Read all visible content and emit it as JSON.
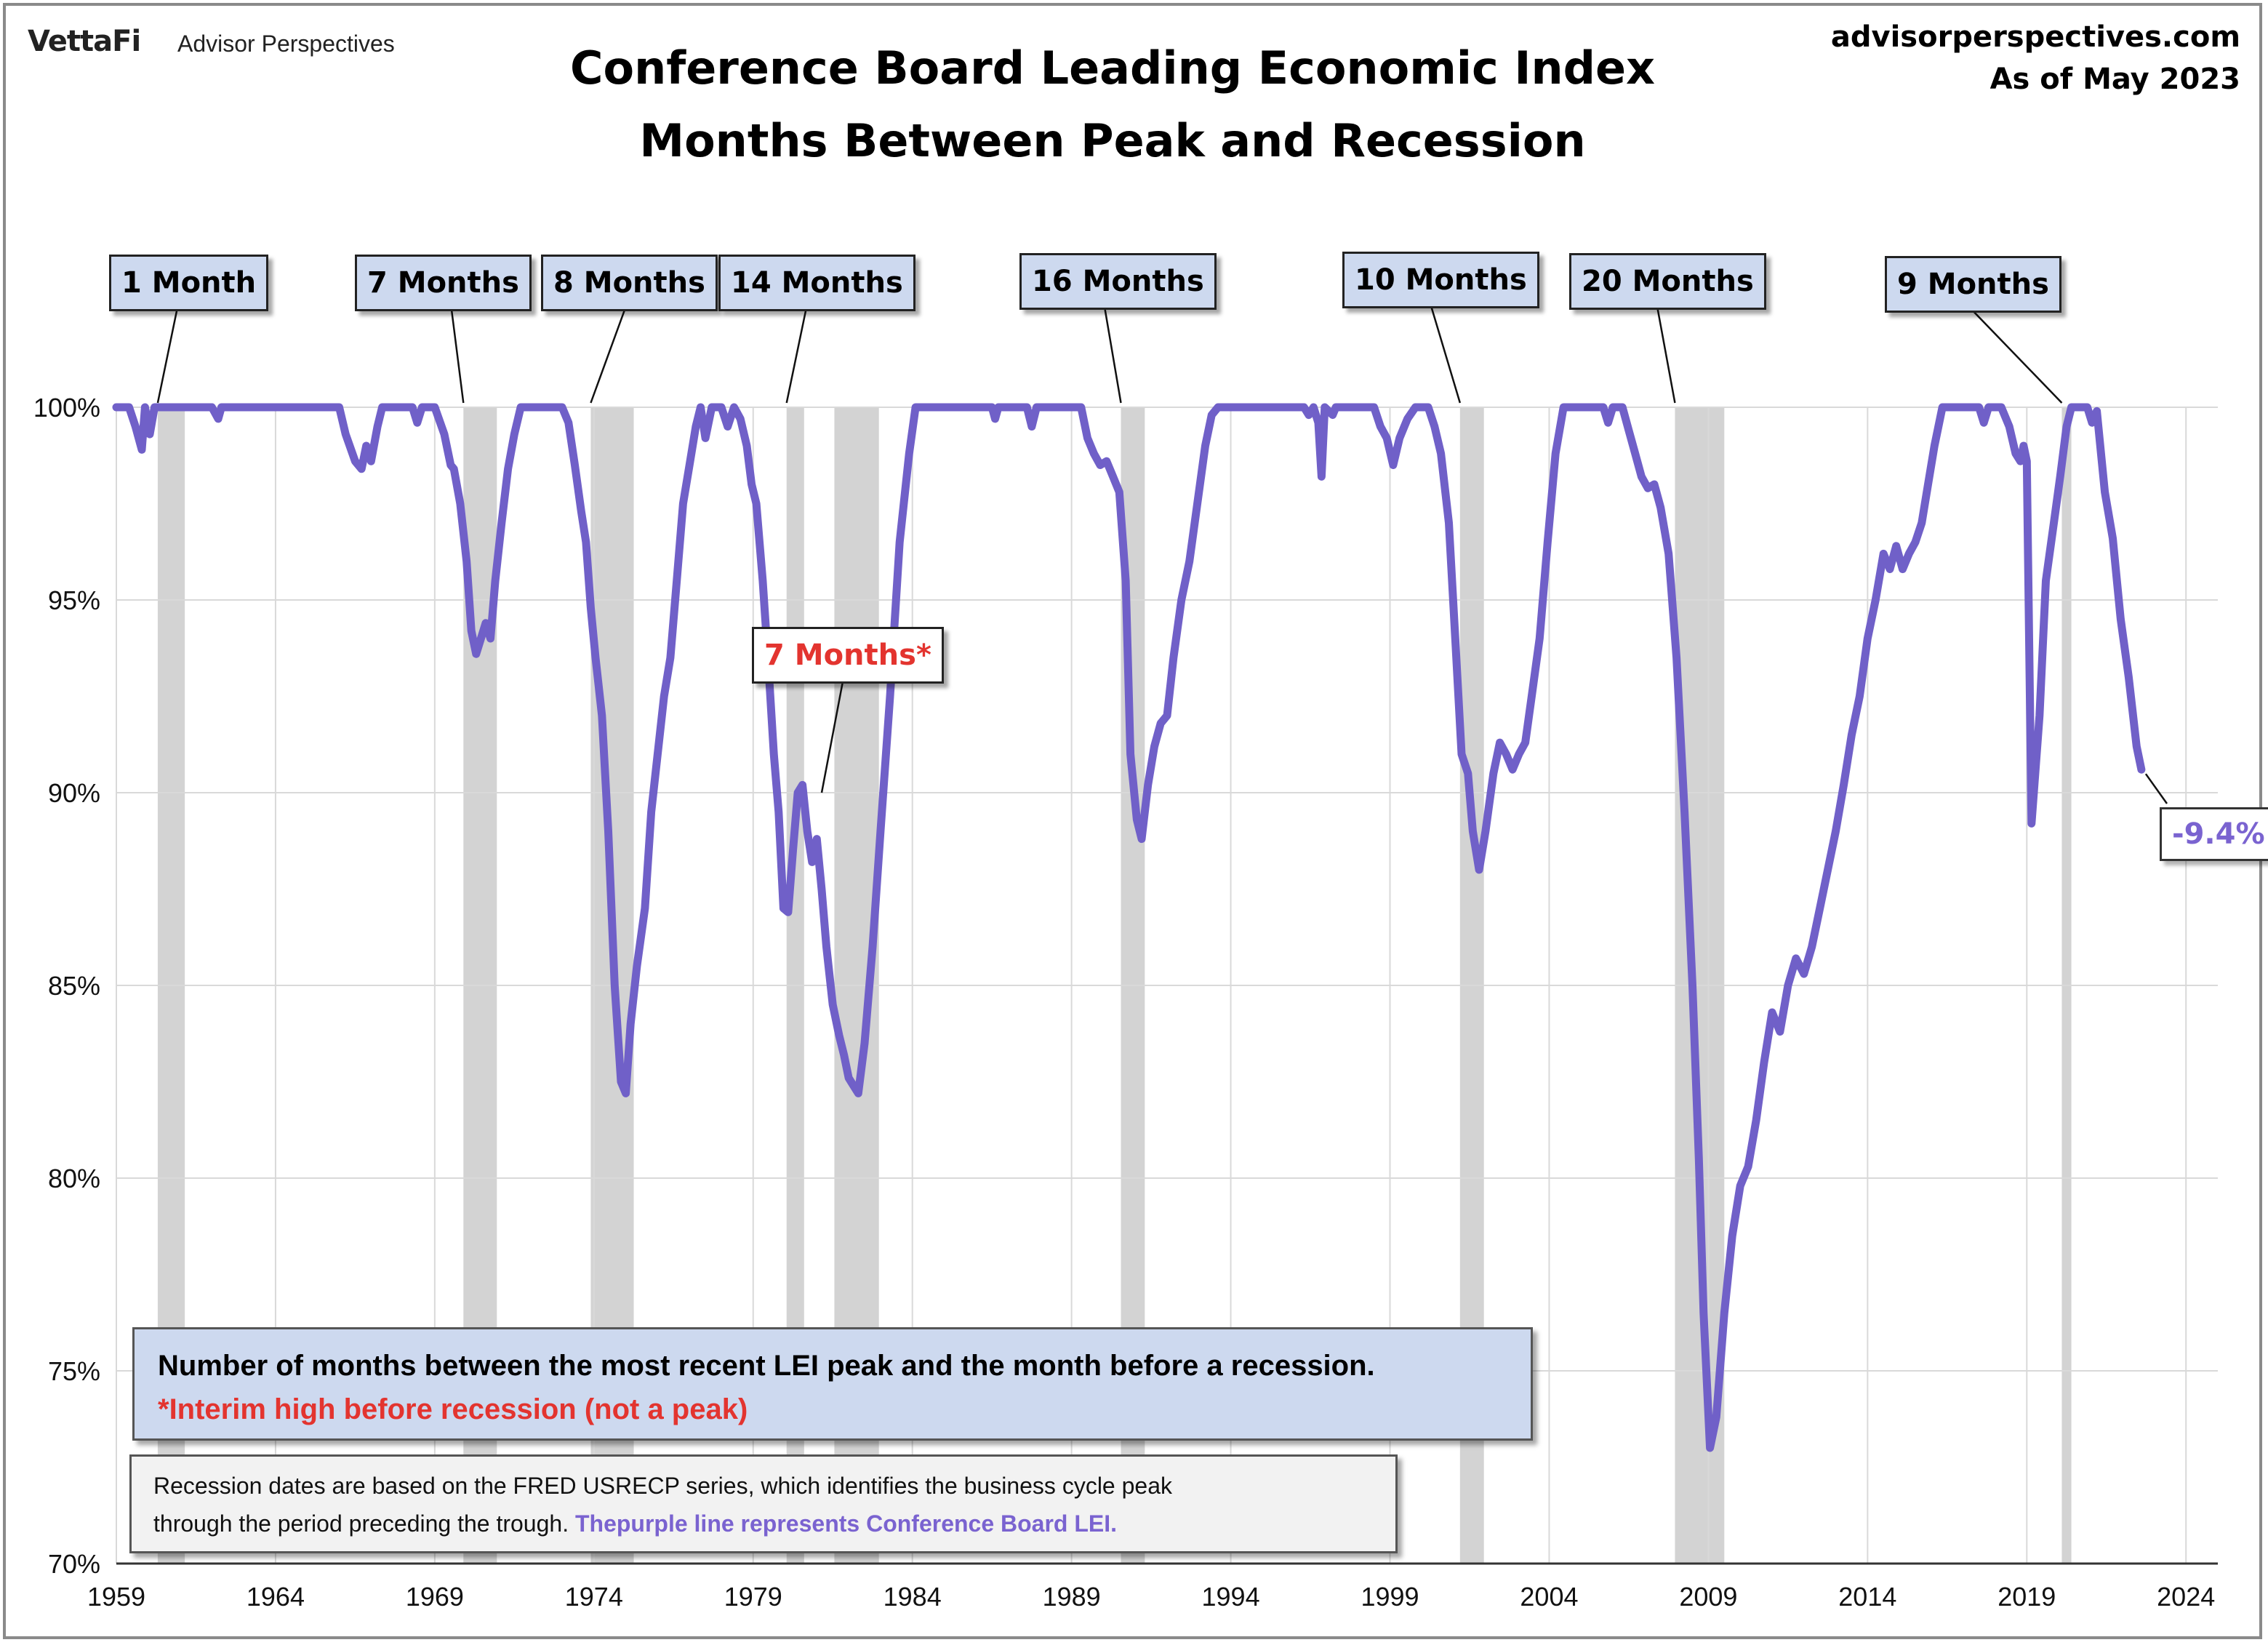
{
  "header": {
    "logo": "VettaFi",
    "logo_sub": "Advisor Perspectives",
    "site": "advisorperspectives.com",
    "as_of": "As of May 2023",
    "title_line1": "Conference Board Leading Economic Index",
    "title_line2": "Months Between Peak and Recession"
  },
  "colors": {
    "line": "#7060c8",
    "recession": "#d3d3d3",
    "callout_bg": "#cdd9ef",
    "red": "#e3342f",
    "grid": "#d9d9d9"
  },
  "callouts": [
    {
      "id": "c1",
      "text": "1 Month"
    },
    {
      "id": "c7",
      "text": "7 Months"
    },
    {
      "id": "c8",
      "text": "8 Months"
    },
    {
      "id": "c14",
      "text": "14 Months"
    },
    {
      "id": "c16",
      "text": "16 Months"
    },
    {
      "id": "c10",
      "text": "10 Months"
    },
    {
      "id": "c20",
      "text": "20 Months"
    },
    {
      "id": "c9",
      "text": "9 Months"
    }
  ],
  "interim_callout": {
    "number": "7",
    "text": " Months*"
  },
  "latest_label": "-9.4%",
  "note": {
    "line1": "Number of months between the most recent LEI peak and the month before a recession.",
    "line2": "*Interim high before recession (not a peak)"
  },
  "source": {
    "line1": "Recession dates are based on the FRED USRECP series, which identifies the business cycle peak",
    "line2a": "through the period preceding the trough.",
    "line2b": " Thepurple line represents Conference Board LEI."
  },
  "chart_data": {
    "type": "line",
    "title": "Conference Board Leading Economic Index Months Between Peak and Recession",
    "xlabel": "",
    "ylabel": "",
    "xlim": [
      1959,
      2025
    ],
    "ylim": [
      70,
      100
    ],
    "grid": true,
    "yticks": [
      70,
      75,
      80,
      85,
      90,
      95,
      100
    ],
    "ytick_labels": [
      "70%",
      "75%",
      "80%",
      "85%",
      "90%",
      "95%",
      "100%"
    ],
    "xticks": [
      1959,
      1964,
      1969,
      1974,
      1979,
      1984,
      1989,
      1994,
      1999,
      2004,
      2009,
      2014,
      2019,
      2024
    ],
    "xtick_labels": [
      "1959",
      "1964",
      "1969",
      "1974",
      "1979",
      "1984",
      "1989",
      "1994",
      "1999",
      "2004",
      "2009",
      "2014",
      "2019",
      "2024"
    ],
    "recessions": [
      [
        1960.3,
        1961.15
      ],
      [
        1969.9,
        1970.95
      ],
      [
        1973.9,
        1975.25
      ],
      [
        1980.05,
        1980.6
      ],
      [
        1981.55,
        1982.95
      ],
      [
        1990.55,
        1991.3
      ],
      [
        2001.2,
        2001.95
      ],
      [
        2007.95,
        2009.5
      ],
      [
        2020.1,
        2020.4
      ]
    ],
    "series": [
      {
        "values": [
          [
            1959.0,
            100
          ],
          [
            1959.4,
            100
          ],
          [
            1959.6,
            99.5
          ],
          [
            1959.8,
            98.9
          ],
          [
            1959.9,
            100
          ],
          [
            1960.05,
            99.3
          ],
          [
            1960.2,
            100
          ],
          [
            1960.5,
            100
          ],
          [
            1962.0,
            100
          ],
          [
            1962.2,
            99.7
          ],
          [
            1962.3,
            100
          ],
          [
            1966.0,
            100
          ],
          [
            1966.2,
            99.3
          ],
          [
            1966.5,
            98.6
          ],
          [
            1966.7,
            98.4
          ],
          [
            1966.85,
            99.0
          ],
          [
            1967.0,
            98.6
          ],
          [
            1967.2,
            99.5
          ],
          [
            1967.35,
            100
          ],
          [
            1968.3,
            100
          ],
          [
            1968.45,
            99.6
          ],
          [
            1968.6,
            100
          ],
          [
            1969.0,
            100
          ],
          [
            1969.3,
            99.3
          ],
          [
            1969.5,
            98.5
          ],
          [
            1969.6,
            98.4
          ],
          [
            1969.8,
            97.5
          ],
          [
            1970.0,
            96.0
          ],
          [
            1970.15,
            94.2
          ],
          [
            1970.3,
            93.6
          ],
          [
            1970.45,
            94.0
          ],
          [
            1970.6,
            94.4
          ],
          [
            1970.75,
            94.0
          ],
          [
            1970.9,
            95.5
          ],
          [
            1971.1,
            97.0
          ],
          [
            1971.3,
            98.4
          ],
          [
            1971.5,
            99.3
          ],
          [
            1971.7,
            100
          ],
          [
            1973.0,
            100
          ],
          [
            1973.2,
            99.6
          ],
          [
            1973.4,
            98.5
          ],
          [
            1973.6,
            97.3
          ],
          [
            1973.75,
            96.5
          ],
          [
            1973.9,
            94.8
          ],
          [
            1974.05,
            93.5
          ],
          [
            1974.25,
            92.0
          ],
          [
            1974.45,
            89.0
          ],
          [
            1974.65,
            85.0
          ],
          [
            1974.85,
            82.5
          ],
          [
            1975.0,
            82.2
          ],
          [
            1975.15,
            84.0
          ],
          [
            1975.35,
            85.5
          ],
          [
            1975.6,
            87.0
          ],
          [
            1975.8,
            89.5
          ],
          [
            1976.0,
            91.0
          ],
          [
            1976.2,
            92.5
          ],
          [
            1976.4,
            93.5
          ],
          [
            1976.6,
            95.5
          ],
          [
            1976.8,
            97.5
          ],
          [
            1977.0,
            98.5
          ],
          [
            1977.2,
            99.5
          ],
          [
            1977.35,
            100
          ],
          [
            1977.5,
            99.2
          ],
          [
            1977.7,
            100
          ],
          [
            1978.0,
            100
          ],
          [
            1978.2,
            99.5
          ],
          [
            1978.4,
            100
          ],
          [
            1978.6,
            99.7
          ],
          [
            1978.8,
            99.0
          ],
          [
            1978.95,
            98.0
          ],
          [
            1979.1,
            97.5
          ],
          [
            1979.3,
            95.5
          ],
          [
            1979.5,
            93.0
          ],
          [
            1979.65,
            91.0
          ],
          [
            1979.8,
            89.5
          ],
          [
            1979.95,
            87.0
          ],
          [
            1980.1,
            86.9
          ],
          [
            1980.25,
            88.5
          ],
          [
            1980.4,
            90.0
          ],
          [
            1980.55,
            90.2
          ],
          [
            1980.7,
            89.0
          ],
          [
            1980.85,
            88.2
          ],
          [
            1981.0,
            88.8
          ],
          [
            1981.15,
            87.5
          ],
          [
            1981.3,
            86.0
          ],
          [
            1981.5,
            84.5
          ],
          [
            1981.7,
            83.7
          ],
          [
            1981.85,
            83.2
          ],
          [
            1982.0,
            82.6
          ],
          [
            1982.15,
            82.4
          ],
          [
            1982.3,
            82.2
          ],
          [
            1982.5,
            83.5
          ],
          [
            1982.75,
            86.0
          ],
          [
            1983.0,
            89.0
          ],
          [
            1983.3,
            92.5
          ],
          [
            1983.6,
            96.5
          ],
          [
            1983.9,
            98.8
          ],
          [
            1984.1,
            100
          ],
          [
            1986.5,
            100
          ],
          [
            1986.6,
            99.7
          ],
          [
            1986.7,
            100
          ],
          [
            1987.6,
            100
          ],
          [
            1987.75,
            99.5
          ],
          [
            1987.9,
            100
          ],
          [
            1989.3,
            100
          ],
          [
            1989.5,
            99.2
          ],
          [
            1989.7,
            98.8
          ],
          [
            1989.9,
            98.5
          ],
          [
            1990.1,
            98.6
          ],
          [
            1990.3,
            98.2
          ],
          [
            1990.5,
            97.8
          ],
          [
            1990.7,
            95.5
          ],
          [
            1990.85,
            91.0
          ],
          [
            1991.05,
            89.3
          ],
          [
            1991.2,
            88.8
          ],
          [
            1991.4,
            90.2
          ],
          [
            1991.6,
            91.2
          ],
          [
            1991.8,
            91.8
          ],
          [
            1992.0,
            92.0
          ],
          [
            1992.2,
            93.5
          ],
          [
            1992.45,
            95.0
          ],
          [
            1992.7,
            96.0
          ],
          [
            1992.95,
            97.5
          ],
          [
            1993.2,
            99.0
          ],
          [
            1993.4,
            99.8
          ],
          [
            1993.6,
            100
          ],
          [
            1996.3,
            100
          ],
          [
            1996.45,
            99.8
          ],
          [
            1996.6,
            100
          ],
          [
            1996.75,
            99.6
          ],
          [
            1996.85,
            98.2
          ],
          [
            1996.95,
            100
          ],
          [
            1997.2,
            99.8
          ],
          [
            1997.3,
            100
          ],
          [
            1998.5,
            100
          ],
          [
            1998.7,
            99.5
          ],
          [
            1998.9,
            99.2
          ],
          [
            1999.1,
            98.5
          ],
          [
            1999.3,
            99.2
          ],
          [
            1999.55,
            99.7
          ],
          [
            1999.8,
            100
          ],
          [
            2000.2,
            100
          ],
          [
            2000.4,
            99.5
          ],
          [
            2000.6,
            98.8
          ],
          [
            2000.85,
            97.0
          ],
          [
            2001.05,
            94.0
          ],
          [
            2001.25,
            91.0
          ],
          [
            2001.45,
            90.5
          ],
          [
            2001.6,
            89.0
          ],
          [
            2001.8,
            88.0
          ],
          [
            2002.0,
            89.0
          ],
          [
            2002.25,
            90.5
          ],
          [
            2002.45,
            91.3
          ],
          [
            2002.65,
            91.0
          ],
          [
            2002.85,
            90.6
          ],
          [
            2003.05,
            91.0
          ],
          [
            2003.25,
            91.3
          ],
          [
            2003.45,
            92.5
          ],
          [
            2003.7,
            94.0
          ],
          [
            2003.95,
            96.5
          ],
          [
            2004.2,
            98.8
          ],
          [
            2004.45,
            100
          ],
          [
            2005.7,
            100
          ],
          [
            2005.85,
            99.6
          ],
          [
            2006.0,
            100
          ],
          [
            2006.3,
            100
          ],
          [
            2006.5,
            99.4
          ],
          [
            2006.7,
            98.8
          ],
          [
            2006.9,
            98.2
          ],
          [
            2007.1,
            97.9
          ],
          [
            2007.3,
            98.0
          ],
          [
            2007.5,
            97.4
          ],
          [
            2007.75,
            96.2
          ],
          [
            2008.0,
            93.5
          ],
          [
            2008.25,
            89.5
          ],
          [
            2008.5,
            85.0
          ],
          [
            2008.7,
            80.5
          ],
          [
            2008.85,
            76.5
          ],
          [
            2009.05,
            73.0
          ],
          [
            2009.25,
            73.8
          ],
          [
            2009.5,
            76.5
          ],
          [
            2009.75,
            78.5
          ],
          [
            2010.0,
            79.8
          ],
          [
            2010.25,
            80.3
          ],
          [
            2010.5,
            81.5
          ],
          [
            2010.75,
            83.0
          ],
          [
            2011.0,
            84.3
          ],
          [
            2011.25,
            83.8
          ],
          [
            2011.5,
            85.0
          ],
          [
            2011.75,
            85.7
          ],
          [
            2012.0,
            85.3
          ],
          [
            2012.25,
            86.0
          ],
          [
            2012.5,
            87.0
          ],
          [
            2012.75,
            88.0
          ],
          [
            2013.0,
            89.0
          ],
          [
            2013.25,
            90.2
          ],
          [
            2013.5,
            91.5
          ],
          [
            2013.75,
            92.5
          ],
          [
            2014.0,
            94.0
          ],
          [
            2014.25,
            95.0
          ],
          [
            2014.5,
            96.2
          ],
          [
            2014.7,
            95.8
          ],
          [
            2014.9,
            96.4
          ],
          [
            2015.1,
            95.8
          ],
          [
            2015.3,
            96.2
          ],
          [
            2015.5,
            96.5
          ],
          [
            2015.7,
            97.0
          ],
          [
            2015.9,
            98.0
          ],
          [
            2016.1,
            99.0
          ],
          [
            2016.35,
            100
          ],
          [
            2017.5,
            100
          ],
          [
            2017.65,
            99.6
          ],
          [
            2017.8,
            100
          ],
          [
            2018.2,
            100
          ],
          [
            2018.45,
            99.5
          ],
          [
            2018.65,
            98.8
          ],
          [
            2018.8,
            98.6
          ],
          [
            2018.9,
            99.0
          ],
          [
            2019.0,
            98.6
          ],
          [
            2019.15,
            89.2
          ],
          [
            2019.4,
            92.0
          ],
          [
            2019.6,
            95.5
          ],
          [
            2019.85,
            97.0
          ],
          [
            2020.05,
            98.2
          ],
          [
            2020.25,
            99.5
          ],
          [
            2020.4,
            100
          ],
          [
            2020.9,
            100
          ],
          [
            2021.05,
            99.6
          ],
          [
            2021.2,
            99.9
          ],
          [
            2021.45,
            97.8
          ],
          [
            2021.7,
            96.6
          ],
          [
            2021.95,
            94.5
          ],
          [
            2022.2,
            93.0
          ],
          [
            2022.45,
            91.2
          ],
          [
            2022.6,
            90.6
          ]
        ]
      }
    ],
    "annotations": [
      {
        "text": "1 Month",
        "year": 1960.3
      },
      {
        "text": "7 Months",
        "year": 1969.9
      },
      {
        "text": "8 Months",
        "year": 1973.9
      },
      {
        "text": "14 Months",
        "year": 1980.05
      },
      {
        "text": "16 Months",
        "year": 1990.55
      },
      {
        "text": "10 Months",
        "year": 2001.2
      },
      {
        "text": "20 Months",
        "year": 2007.95
      },
      {
        "text": "9 Months",
        "year": 2020.1
      },
      {
        "text": "7 Months*",
        "year": 1981.55
      },
      {
        "text": "-9.4%",
        "year": 2022.6
      }
    ]
  }
}
